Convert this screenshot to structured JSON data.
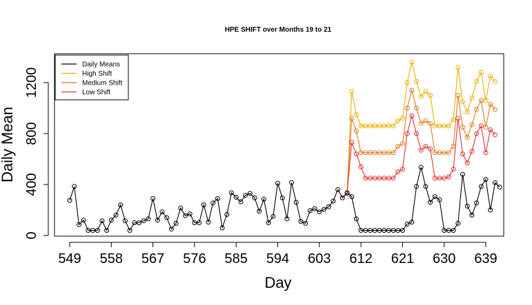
{
  "chart_data": {
    "type": "line",
    "title": "HPE SHIFT over Months 19 to 21",
    "xlabel": "Day",
    "ylabel": "Daily Mean",
    "x_ticks": [
      549,
      558,
      567,
      576,
      585,
      594,
      603,
      612,
      621,
      630,
      639
    ],
    "y_ticks": [
      0,
      400,
      800,
      1200
    ],
    "xlim": [
      548,
      641
    ],
    "ylim": [
      0,
      1420
    ],
    "legend_position": "top-left",
    "legend": [
      "Daily Means",
      "High Shift",
      "Medium Shift",
      "Low Shift"
    ],
    "colors": {
      "daily": "#000000",
      "high": "#E8B000",
      "medium": "#E07820",
      "low": "#E03030"
    },
    "series": [
      {
        "name": "Daily Means",
        "start_day": 549,
        "values": [
          275,
          385,
          85,
          120,
          40,
          40,
          40,
          115,
          40,
          120,
          160,
          240,
          115,
          40,
          100,
          100,
          115,
          130,
          290,
          120,
          185,
          140,
          50,
          95,
          215,
          155,
          170,
          100,
          100,
          240,
          105,
          255,
          290,
          60,
          165,
          335,
          300,
          265,
          315,
          330,
          295,
          190,
          285,
          100,
          150,
          410,
          295,
          130,
          415,
          260,
          110,
          95,
          195,
          210,
          185,
          205,
          225,
          270,
          360,
          295,
          335,
          305,
          130,
          40,
          40,
          40,
          40,
          40,
          40,
          40,
          40,
          40,
          40,
          90,
          105,
          385,
          535,
          385,
          260,
          305,
          280,
          40,
          40,
          40,
          95,
          480,
          230,
          160,
          255,
          385,
          440,
          200,
          415,
          380
        ]
      },
      {
        "name": "High Shift",
        "start_day": 609,
        "values": [
          330,
          1130,
          950,
          860,
          860,
          860,
          860,
          860,
          860,
          860,
          860,
          900,
          920,
          1200,
          1360,
          1210,
          1090,
          1130,
          1100,
          860,
          860,
          860,
          860,
          910,
          1320,
          1050,
          970,
          1080,
          1210,
          1280,
          1060,
          1250,
          1210
        ]
      },
      {
        "name": "Medium Shift",
        "start_day": 609,
        "values": [
          330,
          920,
          820,
          650,
          650,
          650,
          650,
          650,
          650,
          650,
          650,
          700,
          720,
          1000,
          1140,
          1000,
          880,
          900,
          880,
          650,
          650,
          650,
          650,
          700,
          1100,
          850,
          770,
          870,
          990,
          1060,
          850,
          1030,
          990
        ]
      },
      {
        "name": "Low Shift",
        "start_day": 609,
        "values": [
          330,
          730,
          640,
          540,
          450,
          450,
          450,
          450,
          450,
          450,
          450,
          500,
          520,
          800,
          940,
          800,
          670,
          700,
          680,
          450,
          450,
          450,
          460,
          520,
          920,
          640,
          570,
          660,
          800,
          860,
          650,
          830,
          790
        ]
      }
    ]
  }
}
